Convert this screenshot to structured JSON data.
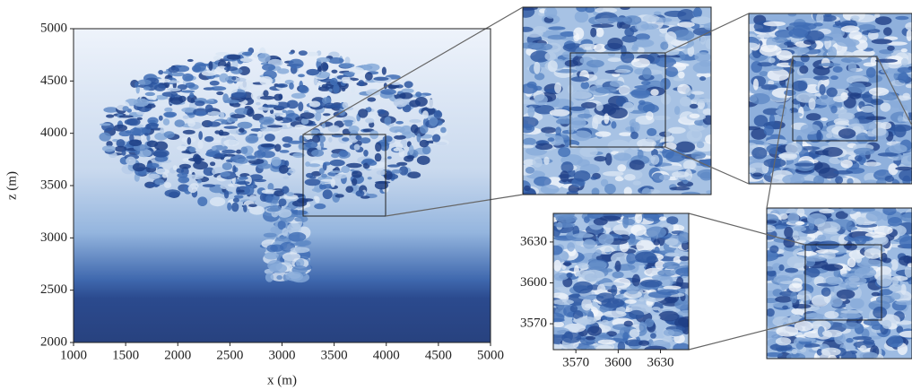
{
  "chart_data": [
    {
      "type": "image",
      "xlabel": "x (m)",
      "ylabel": "z (m)",
      "xlim": [
        1000,
        5000
      ],
      "ylim": [
        2000,
        5000
      ],
      "xticks": [
        1000,
        1500,
        2000,
        2500,
        3000,
        3500,
        4000,
        4500,
        5000
      ],
      "yticks": [
        2000,
        2500,
        3000,
        3500,
        4000,
        4500,
        5000
      ]
    },
    {
      "type": "image",
      "xlim": [
        3554,
        3650
      ],
      "ylim": [
        3551,
        3651
      ],
      "xticks": [
        3570,
        3600,
        3630
      ],
      "yticks": [
        3570,
        3600,
        3630
      ]
    }
  ]
}
